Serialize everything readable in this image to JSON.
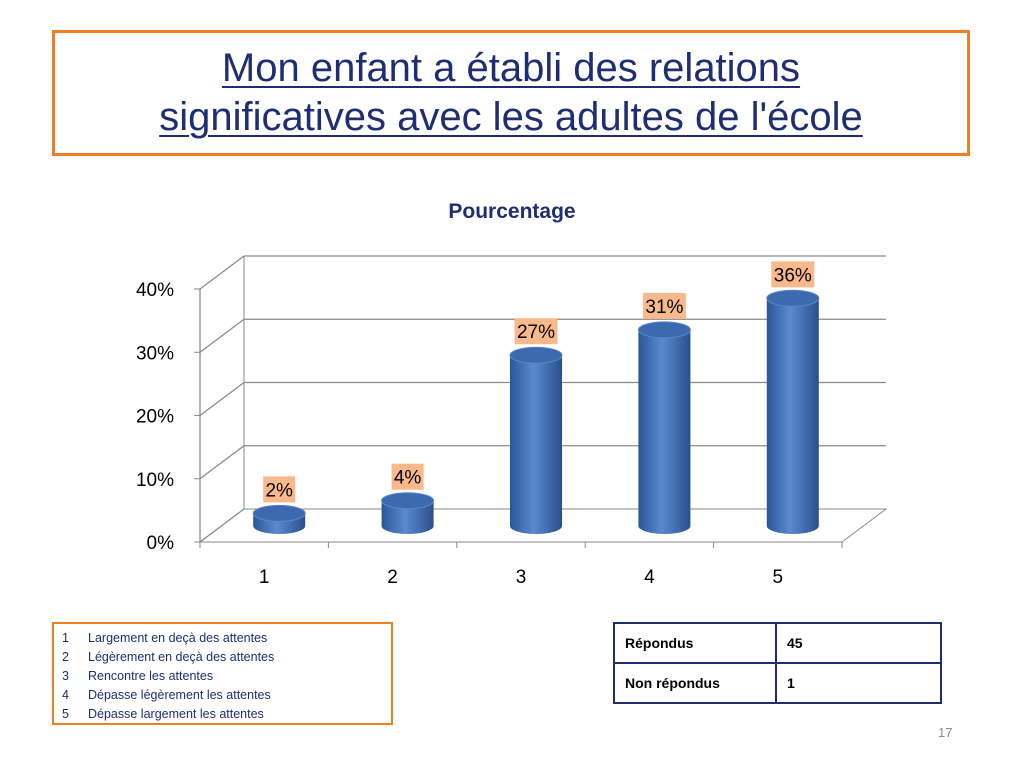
{
  "slide": {
    "title_line1": "Mon enfant a établi des relations",
    "title_line2": "significatives avec les adultes de l'école",
    "page_number": "17"
  },
  "chart_data": {
    "type": "bar",
    "title": "Pourcentage",
    "categories": [
      "1",
      "2",
      "3",
      "4",
      "5"
    ],
    "values": [
      2,
      4,
      27,
      31,
      36
    ],
    "data_labels": [
      "2%",
      "4%",
      "27%",
      "31%",
      "36%"
    ],
    "y_ticks": [
      "0%",
      "10%",
      "20%",
      "30%",
      "40%"
    ],
    "ylim": [
      0,
      40
    ],
    "grid": true,
    "style": "3d-cylinder",
    "bar_color": "#4672b8",
    "label_bg_color": "#f9b98a"
  },
  "legend": {
    "items": [
      {
        "num": "1",
        "text": "Largement en deçà des attentes"
      },
      {
        "num": "2",
        "text": "Légèrement en deçà des attentes"
      },
      {
        "num": "3",
        "text": "Rencontre les attentes"
      },
      {
        "num": "4",
        "text": "Dépasse légèrement les attentes"
      },
      {
        "num": "5",
        "text": "Dépasse largement les attentes"
      }
    ]
  },
  "responses": {
    "rows": [
      {
        "label": "Répondus",
        "value": "45"
      },
      {
        "label": "Non répondus",
        "value": "1"
      }
    ]
  },
  "colors": {
    "accent_orange": "#f07f22",
    "title_blue": "#1f2e73"
  }
}
